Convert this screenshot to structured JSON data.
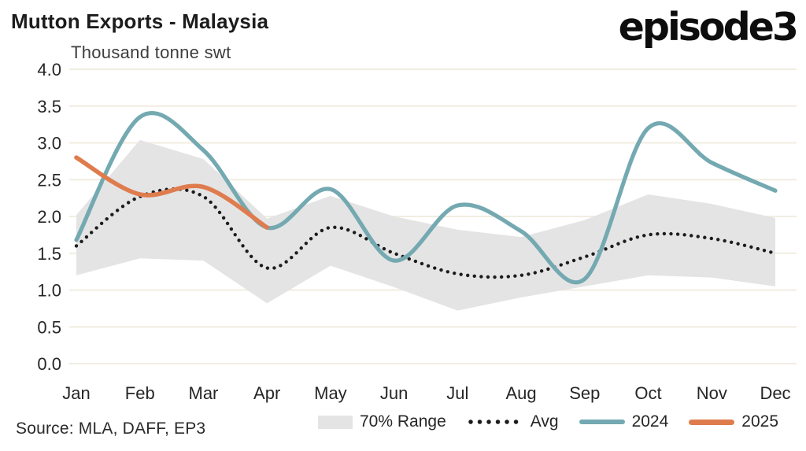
{
  "header": {
    "title": "Mutton Exports - Malaysia",
    "subtitle": "Thousand tonne swt",
    "logo": "episode3"
  },
  "footer": {
    "source": "Source: MLA, DAFF, EP3"
  },
  "legend": {
    "items": [
      {
        "label": "70% Range",
        "type": "band"
      },
      {
        "label": "Avg",
        "type": "dotted"
      },
      {
        "label": "2024",
        "type": "line"
      },
      {
        "label": "2025",
        "type": "line"
      }
    ]
  },
  "colors": {
    "grid": "#f1ede1",
    "band": "#e4e4e4",
    "avg": "#1c1c1c",
    "line2024": "#74a9b1",
    "line2025": "#df7c4e",
    "tick_text": "#262626"
  },
  "chart_data": {
    "type": "line",
    "title": "Mutton Exports - Malaysia",
    "ylabel": "Thousand tonne swt",
    "categories": [
      "Jan",
      "Feb",
      "Mar",
      "Apr",
      "May",
      "Jun",
      "Jul",
      "Aug",
      "Sep",
      "Oct",
      "Nov",
      "Dec"
    ],
    "y_ticks": [
      "4.0",
      "3.5",
      "3.0",
      "2.5",
      "2.0",
      "1.5",
      "1.0",
      "0.5",
      "0.0"
    ],
    "ylim": [
      0.0,
      4.0
    ],
    "grid": "horizontal",
    "legend_position": "bottom",
    "series": [
      {
        "name": "70% Range",
        "type": "band",
        "high": [
          2.02,
          3.04,
          2.78,
          1.97,
          2.28,
          2.0,
          1.82,
          1.72,
          1.95,
          2.3,
          2.17,
          1.98
        ],
        "low": [
          1.2,
          1.43,
          1.4,
          0.82,
          1.33,
          1.04,
          0.72,
          0.9,
          1.05,
          1.2,
          1.17,
          1.05
        ]
      },
      {
        "name": "Avg",
        "type": "dotted-line",
        "values": [
          1.6,
          2.27,
          2.27,
          1.3,
          1.85,
          1.5,
          1.22,
          1.2,
          1.45,
          1.75,
          1.7,
          1.5
        ]
      },
      {
        "name": "2024",
        "type": "line",
        "values": [
          1.68,
          3.35,
          2.9,
          1.85,
          2.37,
          1.4,
          2.15,
          1.8,
          1.15,
          3.2,
          2.73,
          2.35
        ]
      },
      {
        "name": "2025",
        "type": "line",
        "values": [
          2.8,
          2.3,
          2.4,
          1.85
        ]
      }
    ]
  }
}
